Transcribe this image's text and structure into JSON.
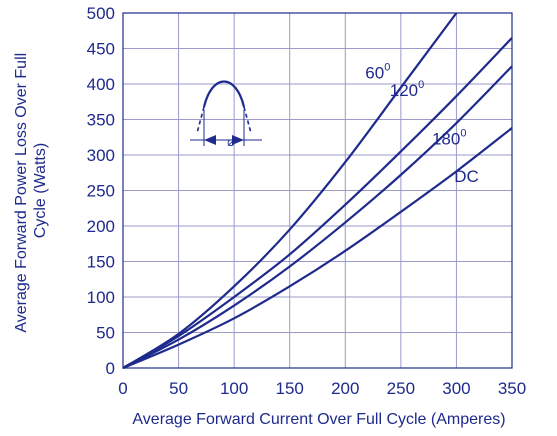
{
  "chart_data": {
    "type": "line",
    "xlabel": "Average Forward Current Over Full Cycle (Amperes)",
    "ylabel_lines": [
      "Average Forward Power Loss Over Full",
      "Cycle (Watts)"
    ],
    "xlim": [
      0,
      350
    ],
    "ylim": [
      0,
      500
    ],
    "xticks": [
      0,
      50,
      100,
      150,
      200,
      250,
      300,
      350
    ],
    "yticks": [
      0,
      50,
      100,
      150,
      200,
      250,
      300,
      350,
      400,
      450,
      500
    ],
    "grid": true,
    "series": [
      {
        "name": "60",
        "name_superscript": "0",
        "x": [
          0,
          50,
          100,
          150,
          200,
          250,
          300
        ],
        "y": [
          0,
          48,
          115,
          195,
          290,
          395,
          505
        ]
      },
      {
        "name": "120",
        "name_superscript": "0",
        "x": [
          0,
          50,
          100,
          150,
          200,
          250,
          300,
          350
        ],
        "y": [
          0,
          45,
          100,
          160,
          230,
          305,
          383,
          465
        ]
      },
      {
        "name": "180",
        "name_superscript": "0",
        "x": [
          0,
          50,
          100,
          150,
          200,
          250,
          300,
          350
        ],
        "y": [
          0,
          40,
          88,
          143,
          205,
          272,
          345,
          425
        ]
      },
      {
        "name": "DC",
        "name_superscript": "",
        "x": [
          0,
          50,
          100,
          150,
          200,
          250,
          300,
          350
        ],
        "y": [
          0,
          33,
          70,
          115,
          165,
          220,
          277,
          338
        ]
      }
    ],
    "inset": {
      "description_icon": "half-sine-conduction-angle-icon",
      "symbol": "⌀"
    }
  }
}
